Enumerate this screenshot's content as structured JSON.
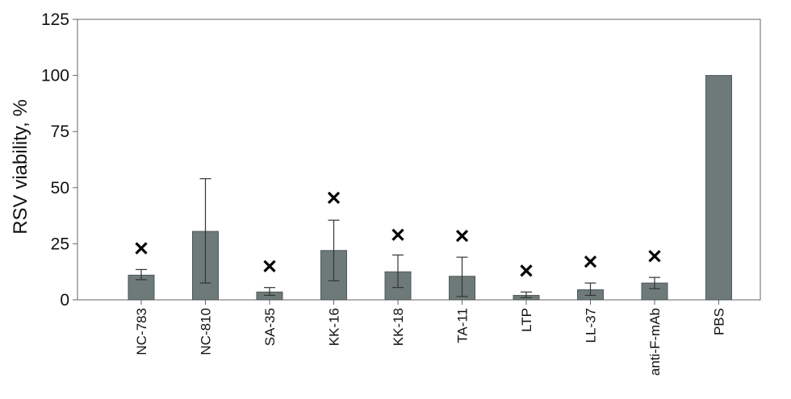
{
  "chart_data": {
    "type": "bar",
    "ylabel": "RSV viability, %",
    "ylim": [
      0,
      125
    ],
    "yticks": [
      0,
      25,
      50,
      75,
      100,
      125
    ],
    "grid": false,
    "categories": [
      "NC-783",
      "NC-810",
      "SA-35",
      "KK-16",
      "KK-18",
      "TA-11",
      "LTP",
      "LL-37",
      "anti-F-mAb",
      "PBS"
    ],
    "series": [
      {
        "values": [
          11,
          30.5,
          3.5,
          22,
          12.5,
          10.5,
          2,
          4.5,
          7.5,
          100
        ],
        "error_low": [
          9,
          7.5,
          2,
          8.5,
          5.5,
          1.5,
          1,
          2,
          5,
          100
        ],
        "error_high": [
          13.5,
          54,
          5.5,
          35.5,
          20,
          19,
          3.5,
          7.5,
          10,
          100
        ]
      },
      {
        "marker": "x",
        "values": [
          23,
          null,
          15,
          45.5,
          29,
          28.5,
          13,
          17,
          19.5,
          null
        ]
      }
    ],
    "colors": {
      "bar": "#6e7a79",
      "bar_edge": "#4e5958",
      "error": "#333333",
      "marker": "#000000",
      "axis": "#666666"
    }
  }
}
